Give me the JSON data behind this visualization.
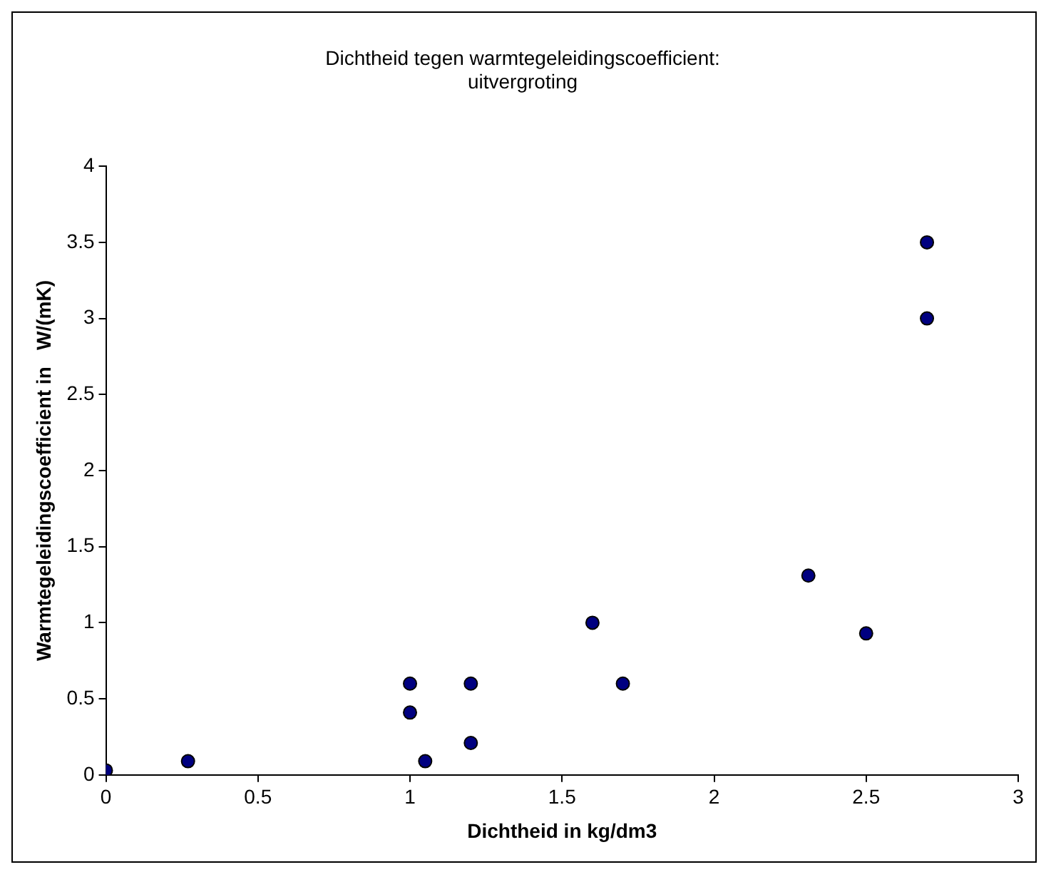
{
  "chart_data": {
    "type": "scatter",
    "title": "Dichtheid tegen warmtegeleidingscoefficient: uitvergroting",
    "xlabel": "Dichtheid in kg/dm3",
    "ylabel": "Warmtegeleidingscoefficient in   W/(mK)",
    "x": [
      0,
      0.27,
      1.0,
      1.0,
      1.05,
      1.2,
      1.2,
      1.6,
      1.7,
      2.31,
      2.5,
      2.7,
      2.7
    ],
    "values": [
      0.03,
      0.09,
      0.6,
      0.41,
      0.09,
      0.6,
      0.21,
      1.0,
      0.6,
      1.31,
      0.93,
      3.0,
      3.5
    ],
    "color": "#000080",
    "marker": "circle",
    "grid": false,
    "legend": false,
    "xlim": [
      0,
      3
    ],
    "xticks": [
      0,
      0.5,
      1,
      1.5,
      2,
      2.5,
      3
    ],
    "ylim": [
      0,
      4
    ],
    "yticks": [
      0,
      0.5,
      1,
      1.5,
      2,
      2.5,
      3,
      3.5,
      4
    ]
  }
}
